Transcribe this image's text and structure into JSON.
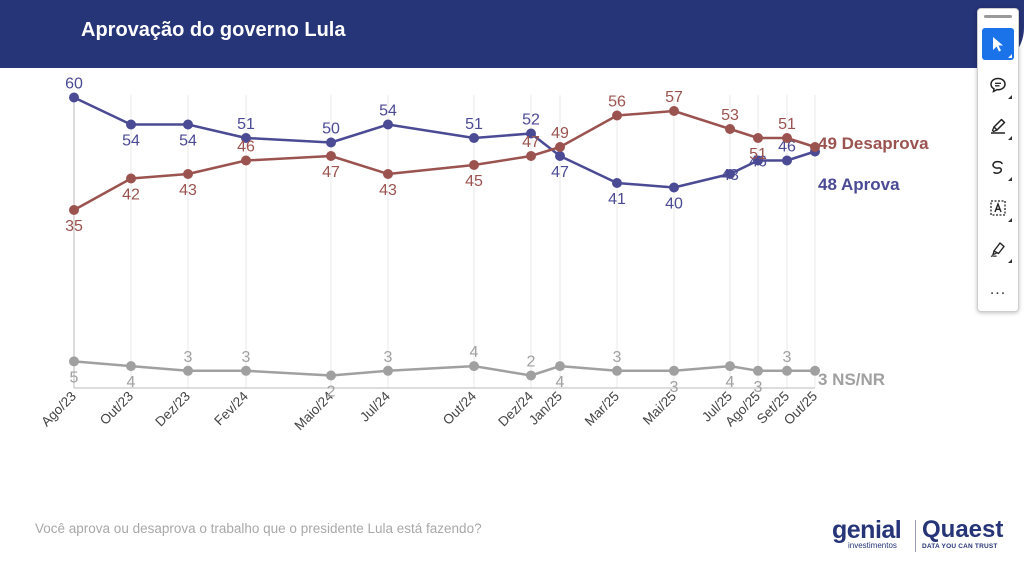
{
  "header": {
    "title": "Aprovação do governo Lula"
  },
  "toolbar": {
    "items": [
      {
        "name": "select-tool",
        "icon": "cursor-icon",
        "active": true
      },
      {
        "name": "comment-tool",
        "icon": "comment-icon",
        "active": false
      },
      {
        "name": "highlight-tool",
        "icon": "highlighter-icon",
        "active": false
      },
      {
        "name": "draw-tool",
        "icon": "freehand-icon",
        "active": false
      },
      {
        "name": "text-box-tool",
        "icon": "text-box-icon",
        "active": false
      },
      {
        "name": "sign-tool",
        "icon": "signature-pen-icon",
        "active": false
      }
    ],
    "more_label": "..."
  },
  "chart_data": {
    "type": "line",
    "title": "Aprovação do governo Lula",
    "categories": [
      "Ago/23",
      "Out/23",
      "Dez/23",
      "Fev/24",
      "Maio/24",
      "Jul/24",
      "Out/24",
      "Dez/24",
      "Jan/25",
      "Mar/25",
      "Mai/25",
      "Jul/25",
      "Ago/25",
      "Set/25",
      "Out/25"
    ],
    "series": [
      {
        "name": "Aprova",
        "color": "#4b4a94",
        "values": [
          60,
          54,
          54,
          51,
          50,
          54,
          51,
          52,
          47,
          41,
          40,
          43,
          46,
          46,
          48
        ]
      },
      {
        "name": "Desaprova",
        "color": "#9b5350",
        "values": [
          35,
          42,
          43,
          46,
          47,
          43,
          45,
          47,
          49,
          56,
          57,
          53,
          51,
          51,
          49
        ]
      },
      {
        "name": "NS/NR",
        "color": "#a0a0a0",
        "values": [
          5,
          4,
          3,
          3,
          2,
          3,
          4,
          2,
          4,
          3,
          3,
          4,
          3,
          3,
          3
        ]
      }
    ],
    "end_labels": {
      "Desaprova": "49 Desaprova",
      "Aprova": "48 Aprova",
      "NS/NR": "3 NS/NR"
    },
    "grid": true,
    "axis_line_color": "#bbbbbb",
    "grid_color": "#e8e8e8"
  },
  "footer": {
    "question": "Você aprova ou desaprova o trabalho que o presidente Lula está fazendo?",
    "logo_left": "genial",
    "logo_left_sub": "investimentos",
    "logo_right": "Quaest",
    "logo_right_sub": "DATA YOU CAN TRUST"
  }
}
